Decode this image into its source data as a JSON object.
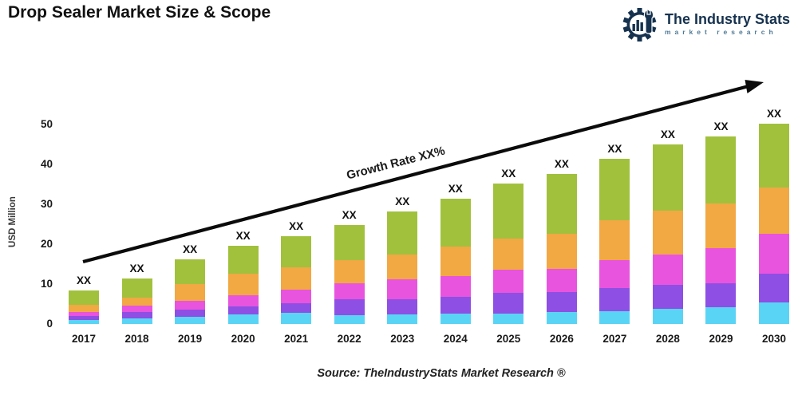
{
  "header": {
    "title": "Drop Sealer Market Size & Scope"
  },
  "logo": {
    "name": "The Industry Stats",
    "tagline": "market research",
    "color": "#16324f",
    "icon": "gear-wrench-chart"
  },
  "footer": {
    "source": "Source: TheIndustryStats Market Research ®"
  },
  "chart_data": {
    "type": "bar",
    "subtype": "stacked-vertical",
    "title": "Drop Sealer Market Size & Scope",
    "xlabel": "",
    "ylabel": "USD Million",
    "ylim": [
      0,
      50
    ],
    "yticks": [
      0,
      10,
      20,
      30,
      40,
      50
    ],
    "grid": false,
    "legend": false,
    "categories": [
      "2017",
      "2018",
      "2019",
      "2020",
      "2021",
      "2022",
      "2023",
      "2024",
      "2025",
      "2026",
      "2027",
      "2028",
      "2029",
      "2030"
    ],
    "bar_value_labels": [
      "XX",
      "XX",
      "XX",
      "XX",
      "XX",
      "XX",
      "XX",
      "XX",
      "XX",
      "XX",
      "XX",
      "XX",
      "XX",
      "XX"
    ],
    "series": [
      {
        "name": "segment-cyan",
        "color": "#5ad4f5",
        "values": [
          1.1,
          1.5,
          1.8,
          2.4,
          2.8,
          2.3,
          2.4,
          2.7,
          2.7,
          3.0,
          3.2,
          3.8,
          4.3,
          5.4
        ]
      },
      {
        "name": "segment-purple",
        "color": "#8d4fe4",
        "values": [
          0.9,
          1.6,
          1.8,
          2.0,
          2.4,
          3.9,
          3.9,
          4.1,
          5.1,
          5.0,
          5.9,
          6.0,
          5.9,
          7.2
        ]
      },
      {
        "name": "segment-magenta",
        "color": "#e854de",
        "values": [
          1.1,
          1.6,
          2.2,
          2.8,
          3.5,
          4.1,
          4.9,
          5.2,
          5.9,
          5.9,
          6.9,
          7.6,
          8.9,
          10.0
        ]
      },
      {
        "name": "segment-orange",
        "color": "#f2a843",
        "values": [
          1.8,
          1.9,
          4.3,
          5.4,
          5.6,
          5.7,
          6.3,
          7.4,
          7.7,
          8.7,
          10.1,
          11.0,
          11.2,
          11.7
        ]
      },
      {
        "name": "segment-green",
        "color": "#a1c13d",
        "values": [
          3.6,
          4.8,
          6.2,
          7.0,
          7.7,
          8.9,
          10.7,
          12.1,
          13.9,
          15.0,
          15.4,
          16.7,
          16.7,
          16.0
        ]
      }
    ],
    "totals": [
      8.5,
      11.4,
      16.3,
      19.6,
      22.0,
      24.9,
      28.2,
      31.5,
      35.3,
      37.6,
      41.5,
      45.1,
      47.0,
      50.3
    ],
    "annotation": {
      "text": "Growth Rate XX%",
      "arrow": true
    }
  }
}
